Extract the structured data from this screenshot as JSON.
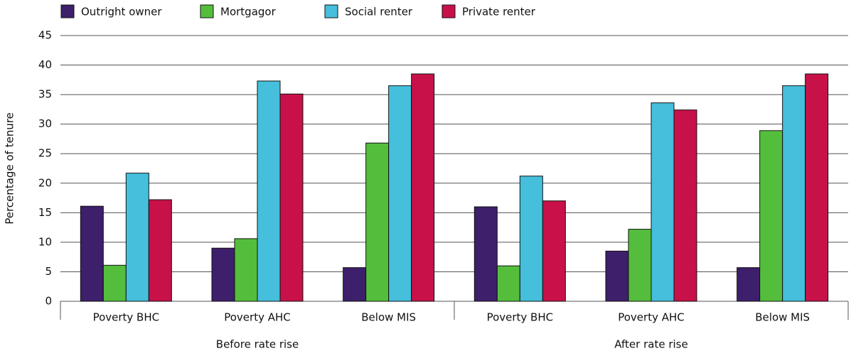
{
  "chart_data": {
    "type": "bar",
    "y_label": "Percentage of tenure",
    "categories": [
      "Poverty BHC",
      "Poverty AHC",
      "Below MIS",
      "Poverty BHC",
      "Poverty AHC",
      "Below MIS"
    ],
    "group_labels": [
      "Before rate rise",
      "After rate rise"
    ],
    "series": [
      {
        "name": "Outright owner",
        "color": "#3d1f6b",
        "values": [
          16.1,
          9.0,
          5.7,
          16.0,
          8.5,
          5.7
        ]
      },
      {
        "name": "Mortgagor",
        "color": "#54be3c",
        "values": [
          6.1,
          10.6,
          26.8,
          6.0,
          12.2,
          28.9
        ]
      },
      {
        "name": "Social renter",
        "color": "#45bfdc",
        "values": [
          21.7,
          37.3,
          36.5,
          21.2,
          33.6,
          36.5
        ]
      },
      {
        "name": "Private renter",
        "color": "#c81148",
        "values": [
          17.2,
          35.1,
          38.5,
          17.0,
          32.4,
          38.5
        ]
      }
    ],
    "ylim": [
      0,
      45
    ],
    "yticks": [
      0,
      5,
      10,
      15,
      20,
      25,
      30,
      35,
      40,
      45
    ],
    "grid": true,
    "legend": "top"
  }
}
